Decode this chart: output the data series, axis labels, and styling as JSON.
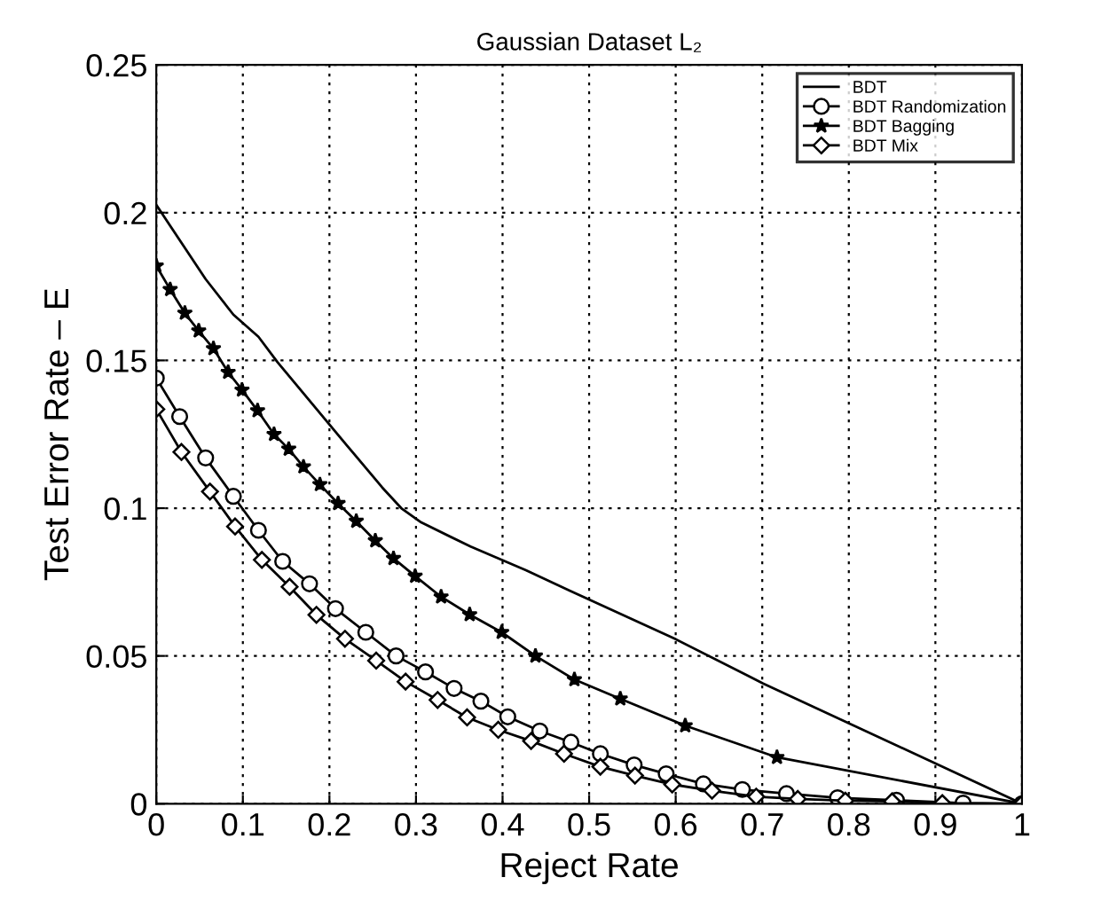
{
  "chart_data": {
    "type": "line",
    "title": "Gaussian Dataset L₂",
    "xlabel": "Reject Rate",
    "ylabel": "Test Error Rate – E",
    "xlim": [
      0,
      1
    ],
    "ylim": [
      0,
      0.25
    ],
    "xticks": [
      {
        "value": 0,
        "label": "0"
      },
      0.1,
      0.2,
      0.3,
      0.4,
      0.5,
      0.6,
      0.7,
      0.8,
      0.9,
      {
        "value": 1,
        "label": "1"
      }
    ],
    "yticks": [
      {
        "value": 0,
        "label": "0"
      },
      0.05,
      0.1,
      0.15,
      0.2,
      0.25
    ],
    "grid": true,
    "legend": "top right",
    "series": [
      {
        "name": "BDT",
        "color": "#000000",
        "marker": "none",
        "x": [
          0,
          0.057,
          0.089,
          0.118,
          0.14,
          0.22,
          0.261,
          0.283,
          0.306,
          0.363,
          0.427,
          0.478,
          0.599,
          0.701,
          1.0
        ],
        "values": [
          0.2026,
          0.1775,
          0.1655,
          0.158,
          0.1494,
          0.1213,
          0.107,
          0.1,
          0.0952,
          0.087,
          0.079,
          0.072,
          0.0558,
          0.0407,
          0.0
        ]
      },
      {
        "name": "BDT Randomization",
        "color": "#000000",
        "marker": "circle",
        "x": [
          0,
          0.027,
          0.057,
          0.089,
          0.118,
          0.146,
          0.177,
          0.207,
          0.242,
          0.277,
          0.311,
          0.344,
          0.375,
          0.406,
          0.443,
          0.479,
          0.513,
          0.552,
          0.589,
          0.632,
          0.677,
          0.728,
          0.787,
          0.855,
          0.932,
          1.0
        ],
        "values": [
          0.144,
          0.131,
          0.117,
          0.104,
          0.0925,
          0.082,
          0.0744,
          0.066,
          0.058,
          0.05,
          0.0446,
          0.039,
          0.0347,
          0.0294,
          0.0246,
          0.0208,
          0.0169,
          0.0131,
          0.0101,
          0.0067,
          0.0048,
          0.0034,
          0.002,
          0.0012,
          0.0002,
          0.0
        ]
      },
      {
        "name": "BDT Bagging",
        "color": "#000000",
        "marker": "star",
        "x": [
          0,
          0.016,
          0.033,
          0.049,
          0.066,
          0.083,
          0.099,
          0.117,
          0.136,
          0.153,
          0.17,
          0.189,
          0.21,
          0.231,
          0.253,
          0.274,
          0.299,
          0.329,
          0.362,
          0.399,
          0.438,
          0.483,
          0.536,
          0.611,
          0.717,
          1.0
        ],
        "values": [
          0.182,
          0.174,
          0.166,
          0.16,
          0.154,
          0.146,
          0.14,
          0.133,
          0.125,
          0.12,
          0.114,
          0.108,
          0.1016,
          0.0956,
          0.089,
          0.083,
          0.077,
          0.07,
          0.064,
          0.058,
          0.05,
          0.042,
          0.0355,
          0.0264,
          0.0157,
          0.0
        ]
      },
      {
        "name": "BDT Mix",
        "color": "#000000",
        "marker": "diamond",
        "x": [
          0,
          0.029,
          0.062,
          0.091,
          0.122,
          0.154,
          0.185,
          0.218,
          0.254,
          0.288,
          0.325,
          0.359,
          0.395,
          0.433,
          0.471,
          0.513,
          0.553,
          0.596,
          0.642,
          0.693,
          0.741,
          0.796,
          0.85,
          0.908,
          1.0
        ],
        "values": [
          0.1335,
          0.119,
          0.1056,
          0.0938,
          0.0825,
          0.0734,
          0.0639,
          0.0558,
          0.0484,
          0.0413,
          0.0351,
          0.0292,
          0.025,
          0.0212,
          0.0169,
          0.0125,
          0.0095,
          0.0065,
          0.0044,
          0.0024,
          0.0016,
          0.001,
          0.0008,
          0.0002,
          0.0
        ]
      }
    ]
  }
}
